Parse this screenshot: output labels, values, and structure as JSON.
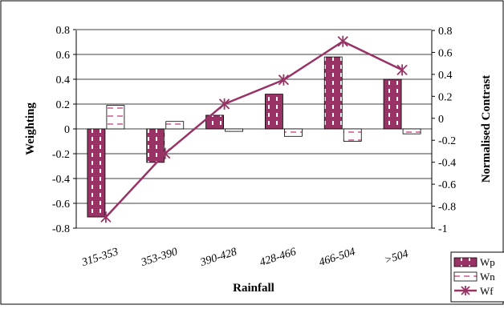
{
  "chart_data": {
    "type": "bar",
    "xlabel": "Rainfall",
    "ylabel": "Weighting",
    "y2label": "Normalised Contrast",
    "categories": [
      "315-353",
      "353-390",
      "390-428",
      "428-466",
      "466-504",
      ">504"
    ],
    "ylim": [
      -0.8,
      0.8
    ],
    "y2lim": [
      -1,
      0.8
    ],
    "yticks": [
      "0.8",
      "0.6",
      "0.4",
      "0.2",
      "0",
      "-0.2",
      "-0.4",
      "-0.6",
      "-0.8"
    ],
    "y2ticks": [
      "0.8",
      "0.6",
      "0.4",
      "0.2",
      "0",
      "-0.2",
      "-0.4",
      "-0.6",
      "-0.8",
      "-1"
    ],
    "grid": true,
    "legend_position": "bottom-right",
    "series": [
      {
        "name": "Wp",
        "type": "bar",
        "axis": "left",
        "color": "#993366",
        "pattern": "dashed-white",
        "values": [
          -0.71,
          -0.27,
          0.11,
          0.28,
          0.58,
          0.4
        ]
      },
      {
        "name": "Wn",
        "type": "bar",
        "axis": "left",
        "color": "#ffffff",
        "pattern": "dashed-pink",
        "values": [
          0.19,
          0.06,
          -0.02,
          -0.06,
          -0.1,
          -0.04
        ]
      },
      {
        "name": "Wf",
        "type": "line",
        "axis": "right",
        "color": "#993366",
        "marker": "asterisk",
        "values": [
          -0.9,
          -0.32,
          0.13,
          0.35,
          0.7,
          0.44
        ]
      }
    ]
  }
}
